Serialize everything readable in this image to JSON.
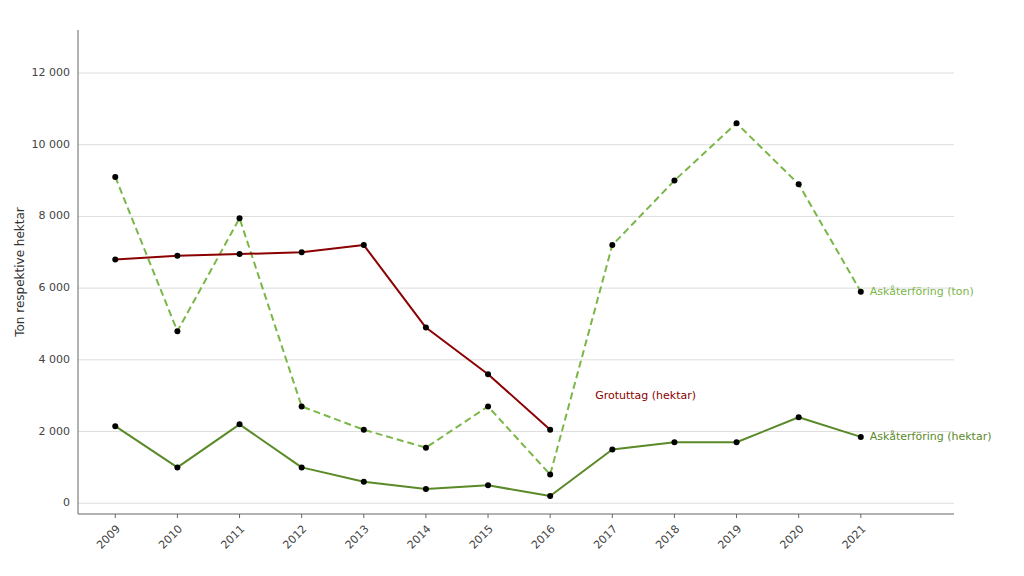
{
  "chart_data": {
    "type": "line",
    "y_label": "Ton respektive hektar",
    "x": [
      2009,
      2010,
      2011,
      2012,
      2013,
      2014,
      2015,
      2016,
      2017,
      2018,
      2019,
      2020,
      2021
    ],
    "xlim": [
      2008.4,
      2022.5
    ],
    "xticks": [
      2009,
      2010,
      2011,
      2012,
      2013,
      2014,
      2015,
      2016,
      2017,
      2018,
      2019,
      2020,
      2021
    ],
    "ylim": [
      -300,
      13200
    ],
    "yticks": [
      0,
      {
        "value": 2000,
        "label": "2 000"
      },
      {
        "value": 4000,
        "label": "4 000"
      },
      {
        "value": 6000,
        "label": "6 000"
      },
      {
        "value": 8000,
        "label": "8 000"
      },
      {
        "value": 10000,
        "label": "10 000"
      },
      {
        "value": 12000,
        "label": "12 000"
      }
    ],
    "grid": true,
    "series": [
      {
        "name": "Askåterföring (ton)",
        "color": "#7ab648",
        "line_style": "dashed",
        "marker": "circle",
        "values": [
          9100,
          4800,
          7950,
          2700,
          2050,
          1550,
          2700,
          800,
          7200,
          9000,
          10600,
          8900,
          5900
        ]
      },
      {
        "name": "Askåterföring (hektar)",
        "color": "#5a8a28",
        "line_style": "solid",
        "marker": "circle",
        "values": [
          2150,
          1000,
          2200,
          1000,
          600,
          400,
          500,
          200,
          1500,
          1700,
          1700,
          2400,
          1850
        ]
      },
      {
        "name": "Grotuttag (hektar)",
        "color": "#8B0000",
        "line_style": "solid",
        "marker": "circle",
        "values": [
          6800,
          6900,
          6950,
          7000,
          7200,
          4900,
          3600,
          2050,
          null,
          null,
          null,
          null,
          null
        ]
      }
    ]
  }
}
